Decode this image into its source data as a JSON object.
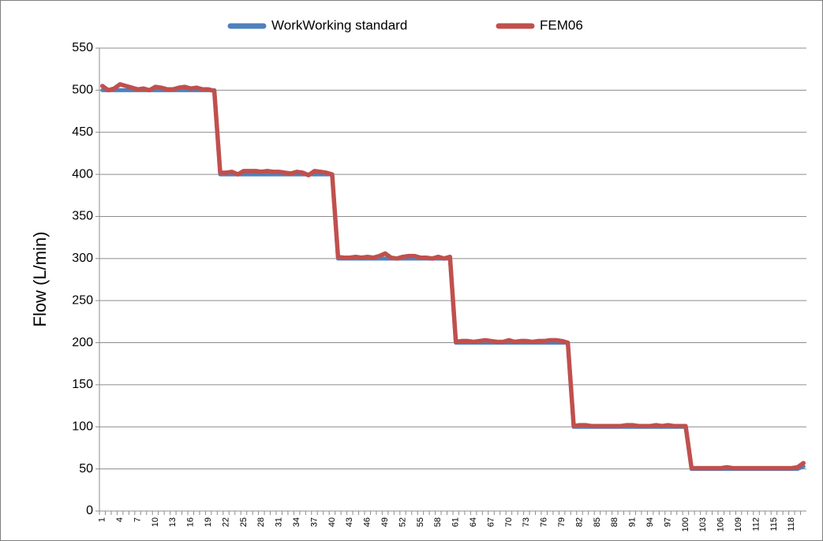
{
  "chart_data": {
    "type": "line",
    "y_label": "Flow (L/min)",
    "categories": [
      1,
      null,
      null,
      4,
      null,
      null,
      7,
      null,
      null,
      10,
      null,
      null,
      13,
      null,
      null,
      16,
      null,
      null,
      19,
      null,
      null,
      22,
      null,
      null,
      25,
      null,
      null,
      28,
      null,
      null,
      31,
      null,
      null,
      34,
      null,
      null,
      37,
      null,
      null,
      40,
      null,
      null,
      43,
      null,
      null,
      46,
      null,
      null,
      49,
      null,
      null,
      52,
      null,
      null,
      55,
      null,
      null,
      58,
      null,
      null,
      61,
      null,
      null,
      64,
      null,
      null,
      67,
      null,
      null,
      70,
      null,
      null,
      73,
      null,
      null,
      76,
      null,
      null,
      79,
      null,
      null,
      82,
      null,
      null,
      85,
      null,
      null,
      88,
      null,
      null,
      91,
      null,
      null,
      94,
      null,
      null,
      97,
      null,
      null,
      100,
      null,
      null,
      103,
      null,
      null,
      106,
      null,
      null,
      109,
      null,
      null,
      112,
      null,
      null,
      115,
      null,
      null,
      118,
      null,
      null
    ],
    "series": [
      {
        "name": "WorkWorking standard",
        "color": "#4f81bd",
        "values": [
          500,
          500,
          500,
          500,
          500,
          500,
          500,
          500,
          500,
          500,
          500,
          500,
          500,
          500,
          500,
          500,
          500,
          500,
          500,
          500,
          400,
          400,
          400,
          400,
          400,
          400,
          400,
          400,
          400,
          400,
          400,
          400,
          400,
          400,
          400,
          400,
          400,
          400,
          400,
          400,
          300,
          300,
          300,
          300,
          300,
          300,
          300,
          300,
          300,
          300,
          300,
          300,
          300,
          300,
          300,
          300,
          300,
          300,
          300,
          300,
          200,
          200,
          200,
          200,
          200,
          200,
          200,
          200,
          200,
          200,
          200,
          200,
          200,
          200,
          200,
          200,
          200,
          200,
          200,
          200,
          100,
          100,
          100,
          100,
          100,
          100,
          100,
          100,
          100,
          100,
          100,
          100,
          100,
          100,
          100,
          100,
          100,
          100,
          100,
          100,
          50,
          50,
          50,
          50,
          50,
          50,
          50,
          50,
          50,
          50,
          50,
          50,
          50,
          50,
          50,
          50,
          50,
          50,
          50,
          53
        ]
      },
      {
        "name": "FEM06",
        "color": "#c0504d",
        "values": [
          505,
          500,
          502,
          507,
          505,
          503,
          501,
          502,
          500,
          504,
          503,
          501,
          501,
          503,
          504,
          502,
          503,
          501,
          501,
          499,
          402,
          402,
          403,
          400,
          404,
          404,
          404,
          403,
          404,
          403,
          403,
          402,
          401,
          403,
          402,
          399,
          404,
          403,
          402,
          400,
          302,
          301,
          301,
          302,
          301,
          302,
          301,
          303,
          306,
          301,
          300,
          302,
          303,
          303,
          301,
          301,
          300,
          302,
          300,
          302,
          201,
          202,
          202,
          201,
          202,
          203,
          202,
          201,
          201,
          203,
          201,
          202,
          202,
          201,
          202,
          202,
          203,
          203,
          202,
          200,
          101,
          102,
          102,
          101,
          101,
          101,
          101,
          101,
          101,
          102,
          102,
          101,
          101,
          101,
          102,
          101,
          102,
          101,
          101,
          101,
          51,
          51,
          51,
          51,
          51,
          51,
          52,
          51,
          51,
          51,
          51,
          51,
          51,
          51,
          51,
          51,
          51,
          51,
          52,
          57
        ]
      }
    ],
    "ylim": [
      0,
      550
    ],
    "yticks": [
      0,
      50,
      100,
      150,
      200,
      250,
      300,
      350,
      400,
      450,
      500,
      550
    ],
    "grid": true,
    "legend": "top"
  }
}
